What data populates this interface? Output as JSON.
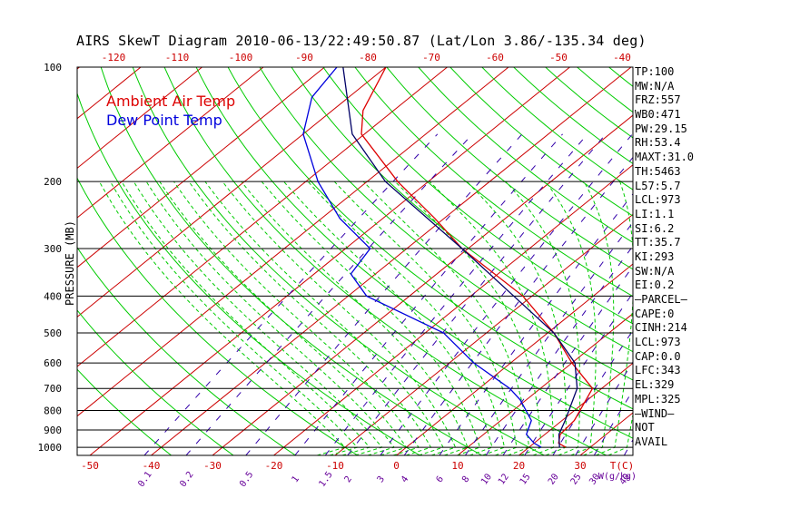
{
  "chart_data": {
    "type": "line",
    "title": "AIRS SkewT Diagram 2010-06-13/22:49:50.87 (Lat/Lon 3.86/-135.34 deg)",
    "ylabel": "PRESSURE (MB)",
    "xlabel": "T(C)",
    "mixing_ratio_label": "W(g/kg)",
    "y_scale": "log",
    "ylim": [
      1050,
      100
    ],
    "xlim_bottom": [
      -50,
      30
    ],
    "xlim_top": [
      -120,
      -40
    ],
    "pressure_ticks": [
      100,
      200,
      300,
      400,
      500,
      600,
      700,
      800,
      900,
      1000
    ],
    "bottom_temp_ticks": [
      -50,
      -40,
      -30,
      -20,
      -10,
      0,
      10,
      20,
      30
    ],
    "top_temp_ticks": [
      -120,
      -110,
      -100,
      -90,
      -80,
      -70,
      -60,
      -50,
      -40
    ],
    "mixing_ratio_ticks": [
      "0.1",
      "0.2",
      "0.5",
      "1",
      "1.5",
      "2",
      "3",
      "4",
      "6",
      "8",
      "10",
      "12",
      "15",
      "20",
      "25",
      "30",
      "40"
    ],
    "series": [
      {
        "name": "Ambient Air Temp",
        "color": "#dd0000",
        "points": [
          [
            1000,
            26
          ],
          [
            975,
            24
          ],
          [
            925,
            22.5
          ],
          [
            850,
            22
          ],
          [
            700,
            18.5
          ],
          [
            600,
            10
          ],
          [
            500,
            1
          ],
          [
            400,
            -11.5
          ],
          [
            300,
            -31
          ],
          [
            250,
            -41.5
          ],
          [
            200,
            -55
          ],
          [
            150,
            -70.5
          ],
          [
            130,
            -75
          ],
          [
            100,
            -80
          ]
        ]
      },
      {
        "name": "Dew Point Temp",
        "color": "#0000dd",
        "points": [
          [
            1000,
            22
          ],
          [
            975,
            20
          ],
          [
            925,
            17
          ],
          [
            850,
            15
          ],
          [
            750,
            9
          ],
          [
            700,
            5
          ],
          [
            600,
            -6
          ],
          [
            500,
            -17
          ],
          [
            400,
            -37
          ],
          [
            350,
            -44
          ],
          [
            300,
            -46
          ],
          [
            250,
            -57
          ],
          [
            200,
            -68
          ],
          [
            150,
            -80
          ],
          [
            120,
            -86
          ],
          [
            100,
            -88
          ]
        ]
      },
      {
        "name": "Parcel",
        "color": "#000066",
        "points": [
          [
            1000,
            25
          ],
          [
            925,
            22.3
          ],
          [
            850,
            20.5
          ],
          [
            700,
            16
          ],
          [
            600,
            10.5
          ],
          [
            500,
            1
          ],
          [
            400,
            -13
          ],
          [
            300,
            -31
          ],
          [
            200,
            -57
          ],
          [
            150,
            -72
          ],
          [
            100,
            -87
          ]
        ]
      }
    ],
    "indices": [
      "TP:100",
      "MW:N/A",
      "FRZ:557",
      "WB0:471",
      "PW:29.15",
      "RH:53.4",
      "MAXT:31.0",
      "TH:5463",
      "L57:5.7",
      "LCL:973",
      "LI:1.1",
      "SI:6.2",
      "TT:35.7",
      "KI:293",
      "SW:N/A",
      "EI:0.2",
      "—PARCEL—",
      "CAPE:0",
      "CINH:214",
      "LCL:973",
      "CAP:0.0",
      "LFC:343",
      "EL:329",
      "MPL:325",
      "—WIND—",
      "NOT",
      "AVAIL"
    ],
    "colors": {
      "isotherm": "#cc0000",
      "dry_adiabat": "#00cc00",
      "moist_adiabat": "#00cc00",
      "mixing_ratio": "#3300aa",
      "axis_text": "#cc0000",
      "mixing_text": "#660099"
    }
  }
}
